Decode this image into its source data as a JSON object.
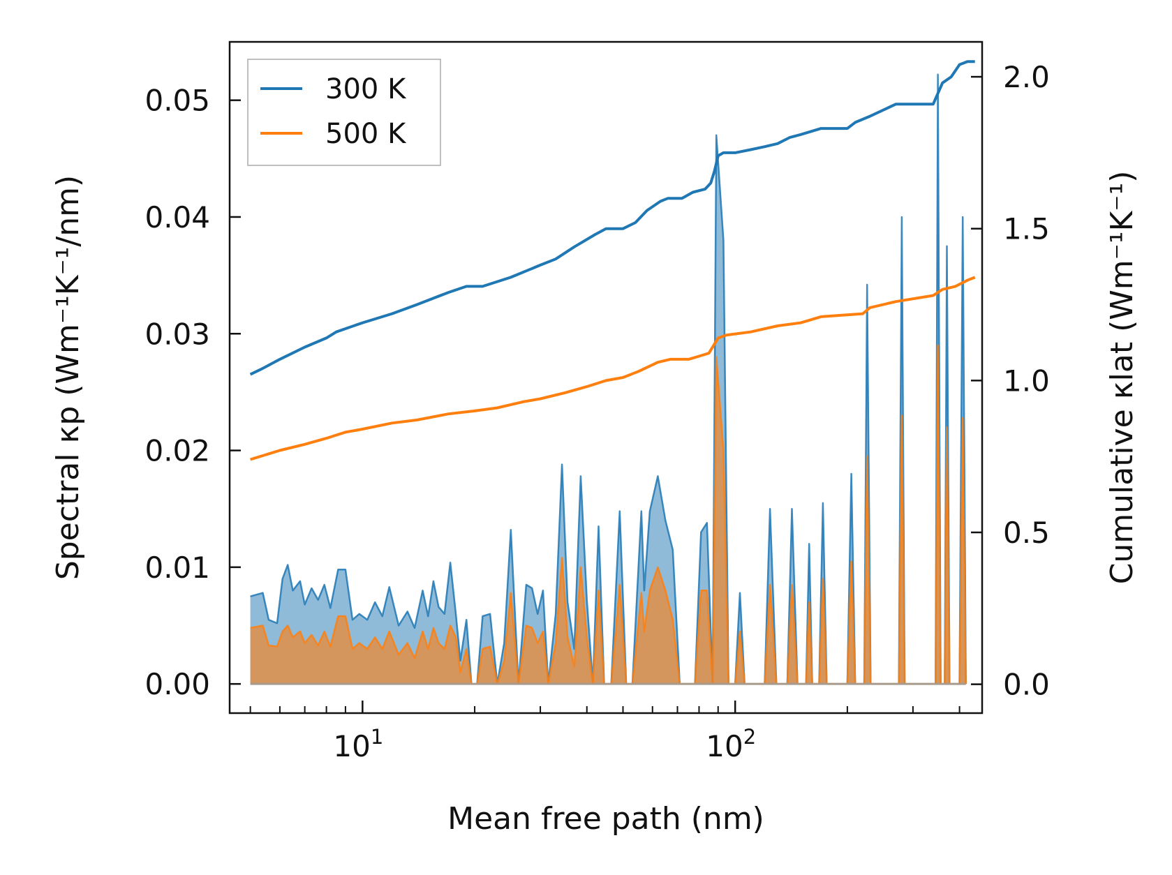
{
  "chart_data": {
    "type": "line",
    "xlabel": "Mean free path (nm)",
    "ylabel_left": "Spectral κp (Wm⁻¹K⁻¹/nm)",
    "ylabel_right": "Cumulative κlat (Wm⁻¹K⁻¹)",
    "xscale": "log",
    "xlim": [
      4.4,
      460
    ],
    "ylim_left": [
      -0.0025,
      0.055
    ],
    "ylim_right": [
      -0.095,
      2.115
    ],
    "x_ticks": [
      10,
      100
    ],
    "x_tick_labels": [
      "10",
      "100"
    ],
    "y_left_ticks": [
      "0.00",
      "0.01",
      "0.02",
      "0.03",
      "0.04",
      "0.05"
    ],
    "y_right_ticks": [
      "0.0",
      "0.5",
      "1.0",
      "1.5",
      "2.0"
    ],
    "legend": {
      "position": "top-left",
      "entries": [
        "300 K",
        "500 K"
      ]
    },
    "colors": {
      "s300": "#1f77b4",
      "s500": "#ff7f0e",
      "fill300": "#1f77b4",
      "fill500": "#ff7f0e"
    },
    "cumulative": [
      {
        "name": "300 K",
        "axis": "right",
        "points": [
          [
            5,
            1.02
          ],
          [
            5.4,
            1.04
          ],
          [
            6,
            1.07
          ],
          [
            7,
            1.11
          ],
          [
            8,
            1.14
          ],
          [
            8.5,
            1.16
          ],
          [
            10,
            1.19
          ],
          [
            12,
            1.22
          ],
          [
            14,
            1.25
          ],
          [
            17,
            1.29
          ],
          [
            19,
            1.31
          ],
          [
            21,
            1.31
          ],
          [
            25,
            1.34
          ],
          [
            30,
            1.38
          ],
          [
            33,
            1.4
          ],
          [
            37,
            1.44
          ],
          [
            42,
            1.48
          ],
          [
            45,
            1.5
          ],
          [
            50,
            1.5
          ],
          [
            54,
            1.52
          ],
          [
            58,
            1.56
          ],
          [
            63,
            1.59
          ],
          [
            66,
            1.6
          ],
          [
            72,
            1.6
          ],
          [
            77,
            1.62
          ],
          [
            83,
            1.63
          ],
          [
            86,
            1.65
          ],
          [
            88,
            1.69
          ],
          [
            90,
            1.74
          ],
          [
            93,
            1.75
          ],
          [
            100,
            1.75
          ],
          [
            110,
            1.76
          ],
          [
            120,
            1.77
          ],
          [
            130,
            1.78
          ],
          [
            140,
            1.8
          ],
          [
            150,
            1.81
          ],
          [
            170,
            1.83
          ],
          [
            200,
            1.83
          ],
          [
            210,
            1.85
          ],
          [
            230,
            1.87
          ],
          [
            270,
            1.91
          ],
          [
            340,
            1.91
          ],
          [
            360,
            1.98
          ],
          [
            380,
            2.0
          ],
          [
            400,
            2.04
          ],
          [
            420,
            2.05
          ],
          [
            440,
            2.05
          ]
        ]
      },
      {
        "name": "500 K",
        "axis": "right",
        "points": [
          [
            5,
            0.74
          ],
          [
            6,
            0.77
          ],
          [
            7,
            0.79
          ],
          [
            8,
            0.81
          ],
          [
            9,
            0.83
          ],
          [
            10,
            0.84
          ],
          [
            12,
            0.86
          ],
          [
            14,
            0.87
          ],
          [
            17,
            0.89
          ],
          [
            20,
            0.9
          ],
          [
            23,
            0.91
          ],
          [
            27,
            0.93
          ],
          [
            30,
            0.94
          ],
          [
            35,
            0.96
          ],
          [
            40,
            0.98
          ],
          [
            45,
            1.0
          ],
          [
            50,
            1.01
          ],
          [
            55,
            1.03
          ],
          [
            62,
            1.06
          ],
          [
            67,
            1.07
          ],
          [
            75,
            1.07
          ],
          [
            80,
            1.08
          ],
          [
            85,
            1.09
          ],
          [
            90,
            1.14
          ],
          [
            95,
            1.15
          ],
          [
            110,
            1.16
          ],
          [
            130,
            1.18
          ],
          [
            150,
            1.19
          ],
          [
            170,
            1.21
          ],
          [
            220,
            1.22
          ],
          [
            230,
            1.24
          ],
          [
            270,
            1.26
          ],
          [
            340,
            1.28
          ],
          [
            360,
            1.3
          ],
          [
            390,
            1.31
          ],
          [
            420,
            1.33
          ],
          [
            440,
            1.34
          ]
        ]
      }
    ],
    "spectral": [
      {
        "name": "300 K",
        "axis": "left",
        "points": [
          [
            5,
            0.0075
          ],
          [
            5.4,
            0.0078
          ],
          [
            5.6,
            0.0055
          ],
          [
            5.9,
            0.0052
          ],
          [
            6.1,
            0.009
          ],
          [
            6.3,
            0.0102
          ],
          [
            6.5,
            0.008
          ],
          [
            6.8,
            0.0088
          ],
          [
            7.0,
            0.0068
          ],
          [
            7.3,
            0.0082
          ],
          [
            7.6,
            0.0072
          ],
          [
            7.9,
            0.0085
          ],
          [
            8.2,
            0.0065
          ],
          [
            8.6,
            0.0098
          ],
          [
            9.0,
            0.0098
          ],
          [
            9.4,
            0.0055
          ],
          [
            9.8,
            0.006
          ],
          [
            10.3,
            0.0055
          ],
          [
            10.8,
            0.007
          ],
          [
            11.3,
            0.0058
          ],
          [
            11.8,
            0.0083
          ],
          [
            12.5,
            0.005
          ],
          [
            13.2,
            0.0062
          ],
          [
            13.8,
            0.0048
          ],
          [
            14.5,
            0.008
          ],
          [
            15.0,
            0.0058
          ],
          [
            15.5,
            0.0088
          ],
          [
            16.0,
            0.0066
          ],
          [
            16.6,
            0.006
          ],
          [
            17.2,
            0.0104
          ],
          [
            17.8,
            0.006
          ],
          [
            18.3,
            0.002
          ],
          [
            19.0,
            0.0055
          ],
          [
            19.6,
            0.0
          ],
          [
            20.3,
            0.0
          ],
          [
            21.0,
            0.0058
          ],
          [
            22.0,
            0.006
          ],
          [
            23.0,
            0.0
          ],
          [
            24.0,
            0.0035
          ],
          [
            25.0,
            0.0132
          ],
          [
            26.2,
            0.0
          ],
          [
            27.5,
            0.0085
          ],
          [
            28.5,
            0.0082
          ],
          [
            29.5,
            0.006
          ],
          [
            30.5,
            0.008
          ],
          [
            31.5,
            0.0
          ],
          [
            33.0,
            0.006
          ],
          [
            34.3,
            0.0188
          ],
          [
            35.5,
            0.007
          ],
          [
            37.0,
            0.003
          ],
          [
            38.5,
            0.0178
          ],
          [
            40.0,
            0.0072
          ],
          [
            41.5,
            0.0
          ],
          [
            43.0,
            0.0135
          ],
          [
            44.5,
            0.0
          ],
          [
            46.5,
            0.0
          ],
          [
            49.0,
            0.0148
          ],
          [
            51.0,
            0.0
          ],
          [
            53.0,
            0.0
          ],
          [
            56.0,
            0.0148
          ],
          [
            57.0,
            0.008
          ],
          [
            59.0,
            0.0148
          ],
          [
            62.0,
            0.0178
          ],
          [
            65.0,
            0.014
          ],
          [
            68.0,
            0.0115
          ],
          [
            71.0,
            0.0
          ],
          [
            78.0,
            0.0
          ],
          [
            81.0,
            0.013
          ],
          [
            84.0,
            0.0138
          ],
          [
            87.0,
            0.0
          ],
          [
            89.0,
            0.047
          ],
          [
            93.0,
            0.038
          ],
          [
            96.0,
            0.0
          ],
          [
            100.0,
            0.0
          ],
          [
            103.0,
            0.0078
          ],
          [
            106.0,
            0.0
          ],
          [
            120.0,
            0.0
          ],
          [
            124.0,
            0.015
          ],
          [
            129.0,
            0.0
          ],
          [
            138.0,
            0.0
          ],
          [
            142.0,
            0.015
          ],
          [
            147.0,
            0.0
          ],
          [
            155.0,
            0.0
          ],
          [
            158.0,
            0.012
          ],
          [
            161.0,
            0.0
          ],
          [
            168.0,
            0.0
          ],
          [
            172.0,
            0.0155
          ],
          [
            176.0,
            0.0
          ],
          [
            200.0,
            0.0
          ],
          [
            205.0,
            0.018
          ],
          [
            210.0,
            0.0
          ],
          [
            222.0,
            0.0
          ],
          [
            226.0,
            0.0342
          ],
          [
            231.0,
            0.0
          ],
          [
            275.0,
            0.0
          ],
          [
            280.0,
            0.04
          ],
          [
            285.0,
            0.0
          ],
          [
            345.0,
            0.0
          ],
          [
            350.0,
            0.0522
          ],
          [
            356.0,
            0.0
          ],
          [
            365.0,
            0.0
          ],
          [
            370.0,
            0.0375
          ],
          [
            376.0,
            0.0
          ],
          [
            400.0,
            0.0
          ],
          [
            408.0,
            0.04
          ],
          [
            416.0,
            0.0
          ]
        ]
      },
      {
        "name": "500 K",
        "axis": "left",
        "points": [
          [
            5,
            0.0048
          ],
          [
            5.4,
            0.005
          ],
          [
            5.6,
            0.0033
          ],
          [
            5.9,
            0.0032
          ],
          [
            6.1,
            0.0045
          ],
          [
            6.3,
            0.005
          ],
          [
            6.5,
            0.004
          ],
          [
            6.8,
            0.0045
          ],
          [
            7.0,
            0.0035
          ],
          [
            7.3,
            0.0042
          ],
          [
            7.6,
            0.0033
          ],
          [
            7.9,
            0.0045
          ],
          [
            8.2,
            0.0032
          ],
          [
            8.6,
            0.0058
          ],
          [
            9.0,
            0.0058
          ],
          [
            9.4,
            0.003
          ],
          [
            9.8,
            0.0035
          ],
          [
            10.3,
            0.003
          ],
          [
            10.8,
            0.004
          ],
          [
            11.3,
            0.003
          ],
          [
            11.8,
            0.0045
          ],
          [
            12.5,
            0.0025
          ],
          [
            13.2,
            0.0035
          ],
          [
            13.8,
            0.0022
          ],
          [
            14.5,
            0.0045
          ],
          [
            15.0,
            0.003
          ],
          [
            15.5,
            0.0048
          ],
          [
            16.0,
            0.0035
          ],
          [
            16.6,
            0.003
          ],
          [
            17.2,
            0.005
          ],
          [
            17.8,
            0.004
          ],
          [
            18.3,
            0.001
          ],
          [
            19.0,
            0.003
          ],
          [
            19.6,
            0.0
          ],
          [
            20.3,
            0.0
          ],
          [
            21.0,
            0.003
          ],
          [
            22.0,
            0.0032
          ],
          [
            23.0,
            0.0
          ],
          [
            24.0,
            0.002
          ],
          [
            25.0,
            0.0078
          ],
          [
            26.2,
            0.0
          ],
          [
            27.5,
            0.005
          ],
          [
            28.5,
            0.0048
          ],
          [
            29.5,
            0.0035
          ],
          [
            30.5,
            0.0045
          ],
          [
            31.5,
            0.0
          ],
          [
            33.0,
            0.0035
          ],
          [
            34.3,
            0.0108
          ],
          [
            35.5,
            0.004
          ],
          [
            37.0,
            0.0015
          ],
          [
            38.5,
            0.01
          ],
          [
            40.0,
            0.004
          ],
          [
            41.5,
            0.0
          ],
          [
            43.0,
            0.008
          ],
          [
            44.5,
            0.0
          ],
          [
            46.5,
            0.0
          ],
          [
            49.0,
            0.0085
          ],
          [
            51.0,
            0.0
          ],
          [
            53.0,
            0.0
          ],
          [
            56.0,
            0.0078
          ],
          [
            57.0,
            0.0045
          ],
          [
            59.0,
            0.008
          ],
          [
            62.0,
            0.01
          ],
          [
            65.0,
            0.008
          ],
          [
            68.0,
            0.0055
          ],
          [
            71.0,
            0.0
          ],
          [
            78.0,
            0.0
          ],
          [
            81.0,
            0.008
          ],
          [
            84.0,
            0.008
          ],
          [
            87.0,
            0.0
          ],
          [
            89.0,
            0.028
          ],
          [
            93.0,
            0.02
          ],
          [
            96.0,
            0.0
          ],
          [
            100.0,
            0.0
          ],
          [
            103.0,
            0.0045
          ],
          [
            106.0,
            0.0
          ],
          [
            120.0,
            0.0
          ],
          [
            124.0,
            0.0085
          ],
          [
            129.0,
            0.0
          ],
          [
            138.0,
            0.0
          ],
          [
            142.0,
            0.0085
          ],
          [
            147.0,
            0.0
          ],
          [
            155.0,
            0.0
          ],
          [
            158.0,
            0.007
          ],
          [
            161.0,
            0.0
          ],
          [
            168.0,
            0.0
          ],
          [
            172.0,
            0.009
          ],
          [
            176.0,
            0.0
          ],
          [
            200.0,
            0.0
          ],
          [
            205.0,
            0.0105
          ],
          [
            210.0,
            0.0
          ],
          [
            222.0,
            0.0
          ],
          [
            226.0,
            0.0195
          ],
          [
            231.0,
            0.0
          ],
          [
            275.0,
            0.0
          ],
          [
            280.0,
            0.023
          ],
          [
            285.0,
            0.0
          ],
          [
            345.0,
            0.0
          ],
          [
            350.0,
            0.029
          ],
          [
            356.0,
            0.0
          ],
          [
            365.0,
            0.0
          ],
          [
            370.0,
            0.022
          ],
          [
            376.0,
            0.0
          ],
          [
            400.0,
            0.0
          ],
          [
            408.0,
            0.0228
          ],
          [
            416.0,
            0.0
          ]
        ]
      }
    ]
  }
}
